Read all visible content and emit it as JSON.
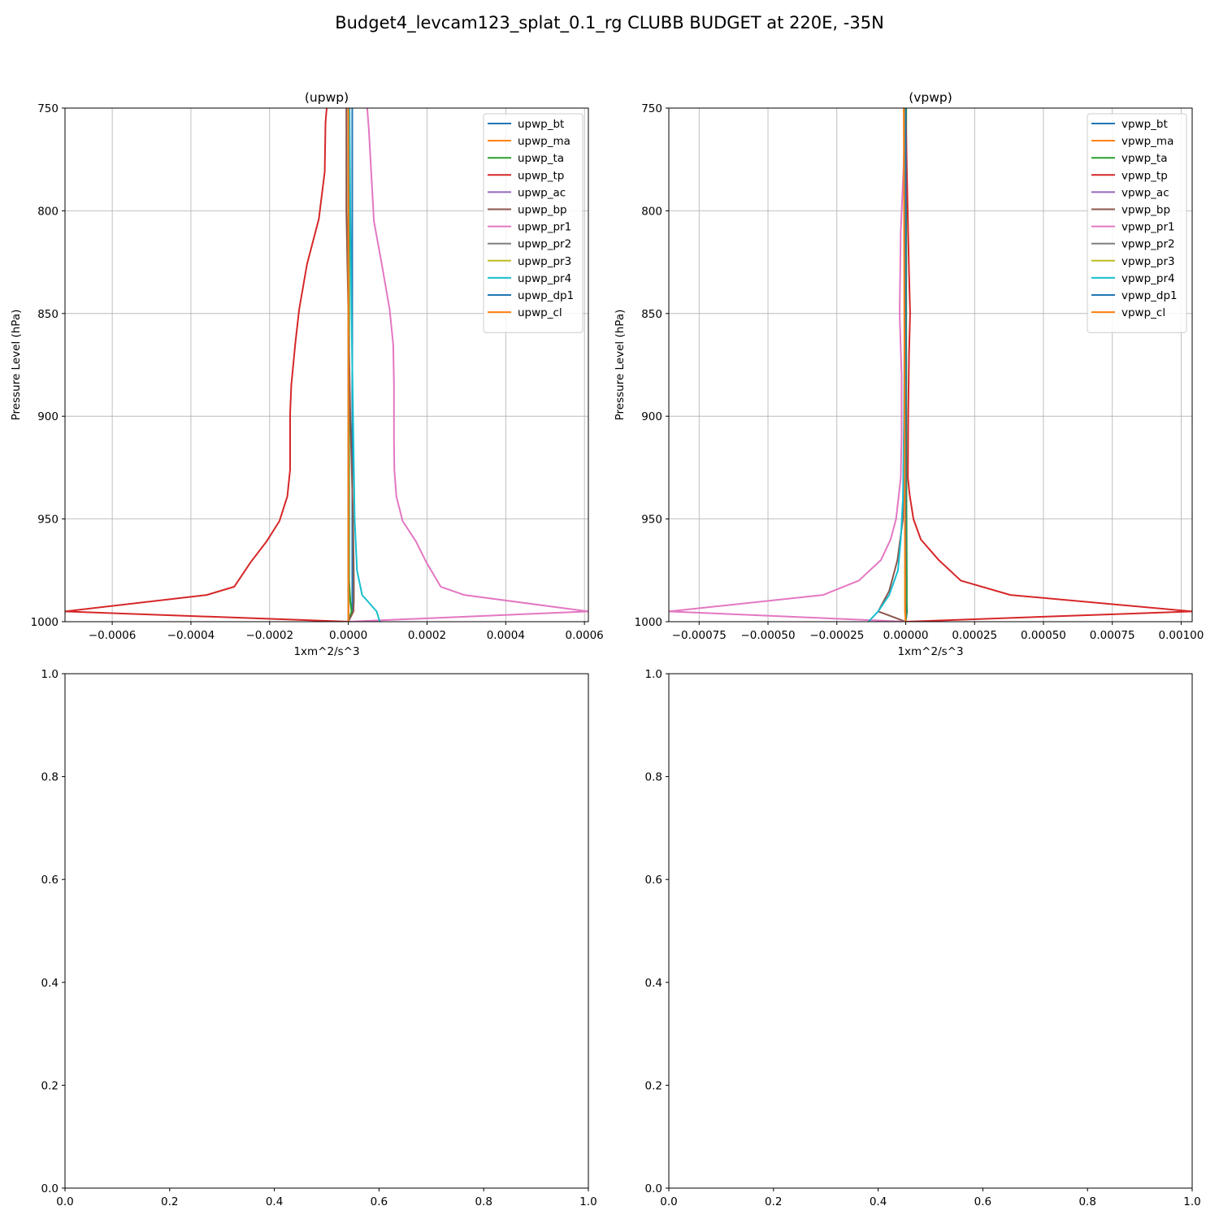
{
  "suptitle": "Budget4_levcam123_splat_0.1_rg CLUBB BUDGET at 220E, -35N",
  "colors": {
    "bt": "#1f77b4",
    "ma": "#ff7f0e",
    "ta": "#2ca02c",
    "tp": "#d62728",
    "ac": "#9467bd",
    "bp": "#8c564b",
    "pr1": "#e377c2",
    "pr2": "#7f7f7f",
    "pr3": "#bcbd22",
    "pr4": "#17becf",
    "dp1": "#1f77b4",
    "cl": "#ff7f0e"
  },
  "chart_data": [
    {
      "type": "line",
      "title": "(upwp)",
      "xlabel": "1xm^2/s^3",
      "ylabel": "Pressure Level (hPa)",
      "xlim": [
        -0.00072,
        0.00061
      ],
      "ylim": [
        1000,
        750
      ],
      "xticks": [
        -0.0006,
        -0.0004,
        -0.0002,
        0.0,
        0.0002,
        0.0004,
        0.0006
      ],
      "xtick_labels": [
        "−0.0006",
        "−0.0004",
        "−0.0002",
        "0.0000",
        "0.0002",
        "0.0004",
        "0.0006"
      ],
      "yticks": [
        750,
        800,
        850,
        900,
        950,
        1000
      ],
      "ytick_labels": [
        "750",
        "800",
        "850",
        "900",
        "950",
        "1000"
      ],
      "grid": true,
      "legend_position": "top-right",
      "series": [
        {
          "name": "upwp_bt",
          "key": "bt",
          "x": [
            1e-05,
            1e-05,
            1e-05,
            1e-05,
            1e-05,
            1e-05,
            1e-05,
            1e-05,
            0.0
          ],
          "y": [
            750,
            800,
            850,
            900,
            950,
            980,
            990,
            995,
            1000
          ]
        },
        {
          "name": "upwp_ma",
          "key": "ma",
          "x": [
            0.0,
            0.0,
            0.0,
            0.0,
            0.0,
            0.0,
            0.0,
            0.0,
            0.0
          ],
          "y": [
            750,
            800,
            850,
            900,
            950,
            980,
            990,
            995,
            1000
          ]
        },
        {
          "name": "upwp_ta",
          "key": "ta",
          "x": [
            2e-06,
            2e-06,
            2e-06,
            2e-06,
            2e-06,
            2e-06,
            5e-06,
            8e-06,
            0.0
          ],
          "y": [
            750,
            800,
            850,
            900,
            950,
            980,
            990,
            995,
            1000
          ]
        },
        {
          "name": "upwp_tp",
          "key": "tp",
          "x": [
            -5.5e-05,
            -5.8e-05,
            -6e-05,
            -7.5e-05,
            -0.000105,
            -0.000125,
            -0.000135,
            -0.000145,
            -0.000148,
            -0.000148,
            -0.000148,
            -0.000155,
            -0.000175,
            -0.000208,
            -0.000248,
            -0.00029,
            -0.00036,
            -0.00072,
            0.0
          ],
          "y": [
            750,
            757,
            781,
            804,
            826,
            848,
            865,
            885,
            899,
            915,
            926,
            939,
            951,
            961,
            971,
            983,
            987,
            995,
            1000
          ]
        },
        {
          "name": "upwp_ac",
          "key": "ac",
          "x": [
            0.0,
            0.0,
            0.0,
            0.0,
            0.0,
            0.0,
            0.0,
            0.0,
            0.0
          ],
          "y": [
            750,
            800,
            850,
            900,
            950,
            980,
            990,
            995,
            1000
          ]
        },
        {
          "name": "upwp_bp",
          "key": "bp",
          "x": [
            -5e-06,
            -5e-06,
            0.0,
            5e-06,
            1.2e-05,
            1.4e-05,
            1.4e-05,
            1.3e-05,
            0.0
          ],
          "y": [
            750,
            800,
            850,
            900,
            950,
            980,
            990,
            995,
            1000
          ]
        },
        {
          "name": "upwp_pr1",
          "key": "pr1",
          "x": [
            4.8e-05,
            5.2e-05,
            6.5e-05,
            8.5e-05,
            0.000105,
            0.000114,
            0.000116,
            0.000116,
            0.000117,
            0.000122,
            0.000138,
            0.000172,
            0.000198,
            0.000235,
            0.000295,
            0.00061,
            0.0
          ],
          "y": [
            750,
            760,
            805,
            826,
            848,
            865,
            885,
            912,
            926,
            939,
            951,
            961,
            971,
            983,
            987,
            995,
            1000
          ]
        },
        {
          "name": "upwp_pr2",
          "key": "pr2",
          "x": [
            0.0,
            0.0,
            0.0,
            0.0,
            0.0,
            0.0,
            0.0,
            0.0,
            0.0
          ],
          "y": [
            750,
            800,
            850,
            900,
            950,
            980,
            990,
            995,
            1000
          ]
        },
        {
          "name": "upwp_pr3",
          "key": "pr3",
          "x": [
            0.0,
            0.0,
            0.0,
            0.0,
            0.0,
            0.0,
            0.0,
            0.0,
            0.0
          ],
          "y": [
            750,
            800,
            850,
            900,
            950,
            980,
            990,
            995,
            1000
          ]
        },
        {
          "name": "upwp_pr4",
          "key": "pr4",
          "x": [
            3e-06,
            5e-06,
            8e-06,
            1.2e-05,
            1.6e-05,
            2.2e-05,
            3.5e-05,
            7.2e-05,
            8e-05
          ],
          "y": [
            750,
            800,
            850,
            900,
            950,
            975,
            987,
            995,
            1000
          ]
        },
        {
          "name": "upwp_dp1",
          "key": "dp1",
          "x": [
            0.0,
            0.0,
            0.0,
            0.0,
            0.0,
            0.0,
            0.0,
            0.0,
            0.0
          ],
          "y": [
            750,
            800,
            850,
            900,
            950,
            980,
            990,
            995,
            1000
          ]
        },
        {
          "name": "upwp_cl",
          "key": "cl",
          "x": [
            0.0,
            0.0,
            0.0,
            0.0,
            0.0,
            0.0,
            0.0,
            0.0,
            0.0
          ],
          "y": [
            750,
            800,
            850,
            900,
            950,
            980,
            990,
            995,
            1000
          ]
        }
      ]
    },
    {
      "type": "line",
      "title": "(vpwp)",
      "xlabel": "1xm^2/s^3",
      "ylabel": "Pressure Level (hPa)",
      "xlim": [
        -0.00086,
        0.00104
      ],
      "ylim": [
        1000,
        750
      ],
      "xticks": [
        -0.00075,
        -0.0005,
        -0.00025,
        0.0,
        0.00025,
        0.0005,
        0.00075,
        0.001
      ],
      "xtick_labels": [
        "−0.00075",
        "−0.00050",
        "−0.00025",
        "0.00000",
        "0.00025",
        "0.00050",
        "0.00075",
        "0.00100"
      ],
      "yticks": [
        750,
        800,
        850,
        900,
        950,
        1000
      ],
      "ytick_labels": [
        "750",
        "800",
        "850",
        "900",
        "950",
        "1000"
      ],
      "grid": true,
      "legend_position": "top-right",
      "series": [
        {
          "name": "vpwp_bt",
          "key": "bt",
          "x": [
            0.0,
            0.0,
            0.0,
            0.0,
            0.0,
            0.0,
            3e-06,
            5e-06,
            0.0
          ],
          "y": [
            750,
            800,
            850,
            900,
            950,
            980,
            990,
            995,
            1000
          ]
        },
        {
          "name": "vpwp_ma",
          "key": "ma",
          "x": [
            -5e-06,
            -4e-06,
            -3e-06,
            -2e-06,
            -2e-06,
            -2e-06,
            -2e-06,
            -2e-06,
            0.0
          ],
          "y": [
            750,
            800,
            850,
            900,
            950,
            980,
            990,
            995,
            1000
          ]
        },
        {
          "name": "vpwp_ta",
          "key": "ta",
          "x": [
            2e-06,
            2e-06,
            2e-06,
            2e-06,
            3e-06,
            4e-06,
            4e-06,
            4e-06,
            0.0
          ],
          "y": [
            750,
            800,
            850,
            900,
            950,
            980,
            990,
            995,
            1000
          ]
        },
        {
          "name": "vpwp_tp",
          "key": "tp",
          "x": [
            0.0,
            4e-06,
            8e-06,
            1.2e-05,
            1.6e-05,
            1.2e-05,
            9e-06,
            8e-06,
            1.4e-05,
            2.8e-05,
            5.5e-05,
            0.00012,
            0.0002,
            0.00038,
            0.00104,
            0.0
          ],
          "y": [
            750,
            780,
            805,
            830,
            850,
            870,
            900,
            930,
            938,
            950,
            960,
            970,
            980,
            987,
            995,
            1000
          ]
        },
        {
          "name": "vpwp_ac",
          "key": "ac",
          "x": [
            0.0,
            0.0,
            0.0,
            0.0,
            0.0,
            0.0,
            0.0,
            0.0,
            0.0
          ],
          "y": [
            750,
            800,
            850,
            900,
            950,
            980,
            990,
            995,
            1000
          ]
        },
        {
          "name": "vpwp_bp",
          "key": "bp",
          "x": [
            0.0,
            0.0,
            -2e-06,
            -5e-06,
            -1e-05,
            -3e-05,
            -6e-05,
            -0.0001,
            0.0
          ],
          "y": [
            750,
            800,
            850,
            900,
            950,
            970,
            985,
            995,
            1000
          ]
        },
        {
          "name": "vpwp_pr1",
          "key": "pr1",
          "x": [
            -2e-06,
            -8e-06,
            -1.8e-05,
            -2.2e-05,
            -1.5e-05,
            -1.5e-05,
            -1.8e-05,
            -3.5e-05,
            -5.5e-05,
            -9e-05,
            -0.00017,
            -0.0003,
            -0.00086,
            -1e-06
          ],
          "y": [
            750,
            780,
            810,
            850,
            880,
            910,
            930,
            950,
            960,
            970,
            980,
            987,
            995,
            1000
          ]
        },
        {
          "name": "vpwp_pr2",
          "key": "pr2",
          "x": [
            0.0,
            0.0,
            0.0,
            0.0,
            0.0,
            0.0,
            0.0,
            0.0,
            0.0
          ],
          "y": [
            750,
            800,
            850,
            900,
            950,
            980,
            990,
            995,
            1000
          ]
        },
        {
          "name": "vpwp_pr3",
          "key": "pr3",
          "x": [
            -3e-06,
            -3e-06,
            -3e-06,
            -3e-06,
            -3e-06,
            -3e-06,
            -3e-06,
            -3e-06,
            0.0
          ],
          "y": [
            750,
            800,
            850,
            900,
            950,
            980,
            990,
            995,
            1000
          ]
        },
        {
          "name": "vpwp_pr4",
          "key": "pr4",
          "x": [
            0.0,
            -2e-06,
            -4e-06,
            -6e-06,
            -1e-05,
            -1.8e-05,
            -2.8e-05,
            -6e-05,
            -0.0001,
            -0.000135
          ],
          "y": [
            750,
            800,
            850,
            900,
            940,
            960,
            975,
            987,
            995,
            1000
          ]
        },
        {
          "name": "vpwp_dp1",
          "key": "dp1",
          "x": [
            0.0,
            0.0,
            0.0,
            0.0,
            0.0,
            0.0,
            0.0,
            0.0,
            0.0
          ],
          "y": [
            750,
            800,
            850,
            900,
            950,
            980,
            990,
            995,
            1000
          ]
        },
        {
          "name": "vpwp_cl",
          "key": "cl",
          "x": [
            -7e-06,
            -6e-06,
            -5e-06,
            -4e-06,
            -3e-06,
            -2e-06,
            -2e-06,
            -2e-06,
            0.0
          ],
          "y": [
            750,
            800,
            850,
            900,
            950,
            980,
            990,
            995,
            1000
          ]
        }
      ]
    },
    {
      "type": "line",
      "title": "",
      "xlabel": "",
      "ylabel": "",
      "xlim": [
        0.0,
        1.0
      ],
      "ylim": [
        0.0,
        1.0
      ],
      "xticks": [
        0.0,
        0.2,
        0.4,
        0.6,
        0.8,
        1.0
      ],
      "xtick_labels": [
        "0.0",
        "0.2",
        "0.4",
        "0.6",
        "0.8",
        "1.0"
      ],
      "yticks": [
        0.0,
        0.2,
        0.4,
        0.6,
        0.8,
        1.0
      ],
      "ytick_labels": [
        "0.0",
        "0.2",
        "0.4",
        "0.6",
        "0.8",
        "1.0"
      ],
      "grid": false,
      "series": []
    },
    {
      "type": "line",
      "title": "",
      "xlabel": "",
      "ylabel": "",
      "xlim": [
        0.0,
        1.0
      ],
      "ylim": [
        0.0,
        1.0
      ],
      "xticks": [
        0.0,
        0.2,
        0.4,
        0.6,
        0.8,
        1.0
      ],
      "xtick_labels": [
        "0.0",
        "0.2",
        "0.4",
        "0.6",
        "0.8",
        "1.0"
      ],
      "yticks": [
        0.0,
        0.2,
        0.4,
        0.6,
        0.8,
        1.0
      ],
      "ytick_labels": [
        "0.0",
        "0.2",
        "0.4",
        "0.6",
        "0.8",
        "1.0"
      ],
      "grid": false,
      "series": []
    }
  ]
}
